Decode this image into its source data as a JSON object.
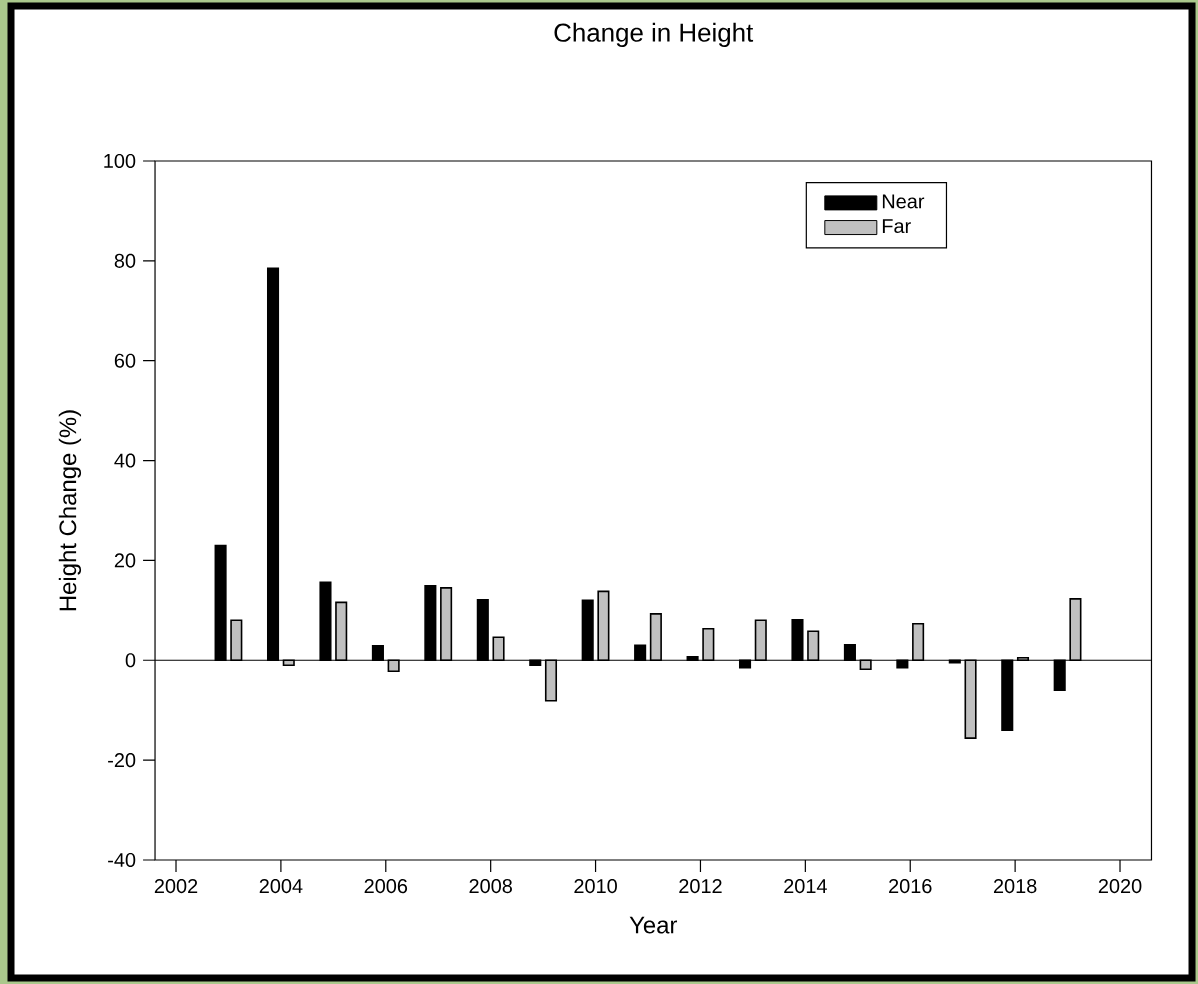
{
  "chart_data": {
    "type": "bar",
    "title": "Change in Height",
    "xlabel": "Year",
    "ylabel": "Height Change (%)",
    "x": [
      2003,
      2004,
      2005,
      2006,
      2007,
      2008,
      2009,
      2010,
      2011,
      2012,
      2013,
      2014,
      2015,
      2016,
      2017,
      2018,
      2019
    ],
    "series": [
      {
        "name": "Near",
        "color": "#000000",
        "values": [
          23,
          78.5,
          15.6,
          2.9,
          14.9,
          12.1,
          -1,
          12,
          3,
          0.7,
          -1.5,
          8.1,
          3.1,
          -1.5,
          -0.5,
          -14,
          -6
        ]
      },
      {
        "name": "Far",
        "color": "#c0c0c0",
        "values": [
          8,
          -1,
          11.6,
          -2.2,
          14.5,
          4.6,
          -8.1,
          13.8,
          9.3,
          6.3,
          8,
          5.8,
          -1.8,
          7.3,
          -15.6,
          0.5,
          12.3
        ]
      }
    ],
    "xlim": [
      2001.6,
      2020.6
    ],
    "ylim": [
      -40,
      100
    ],
    "xticks": [
      2002,
      2004,
      2006,
      2008,
      2010,
      2012,
      2014,
      2016,
      2018,
      2020
    ],
    "yticks": [
      -40,
      -20,
      0,
      20,
      40,
      60,
      80,
      100
    ],
    "ref_lines": [
      {
        "axis": "y",
        "value": 0
      }
    ],
    "legend": "top right",
    "grid": false
  }
}
